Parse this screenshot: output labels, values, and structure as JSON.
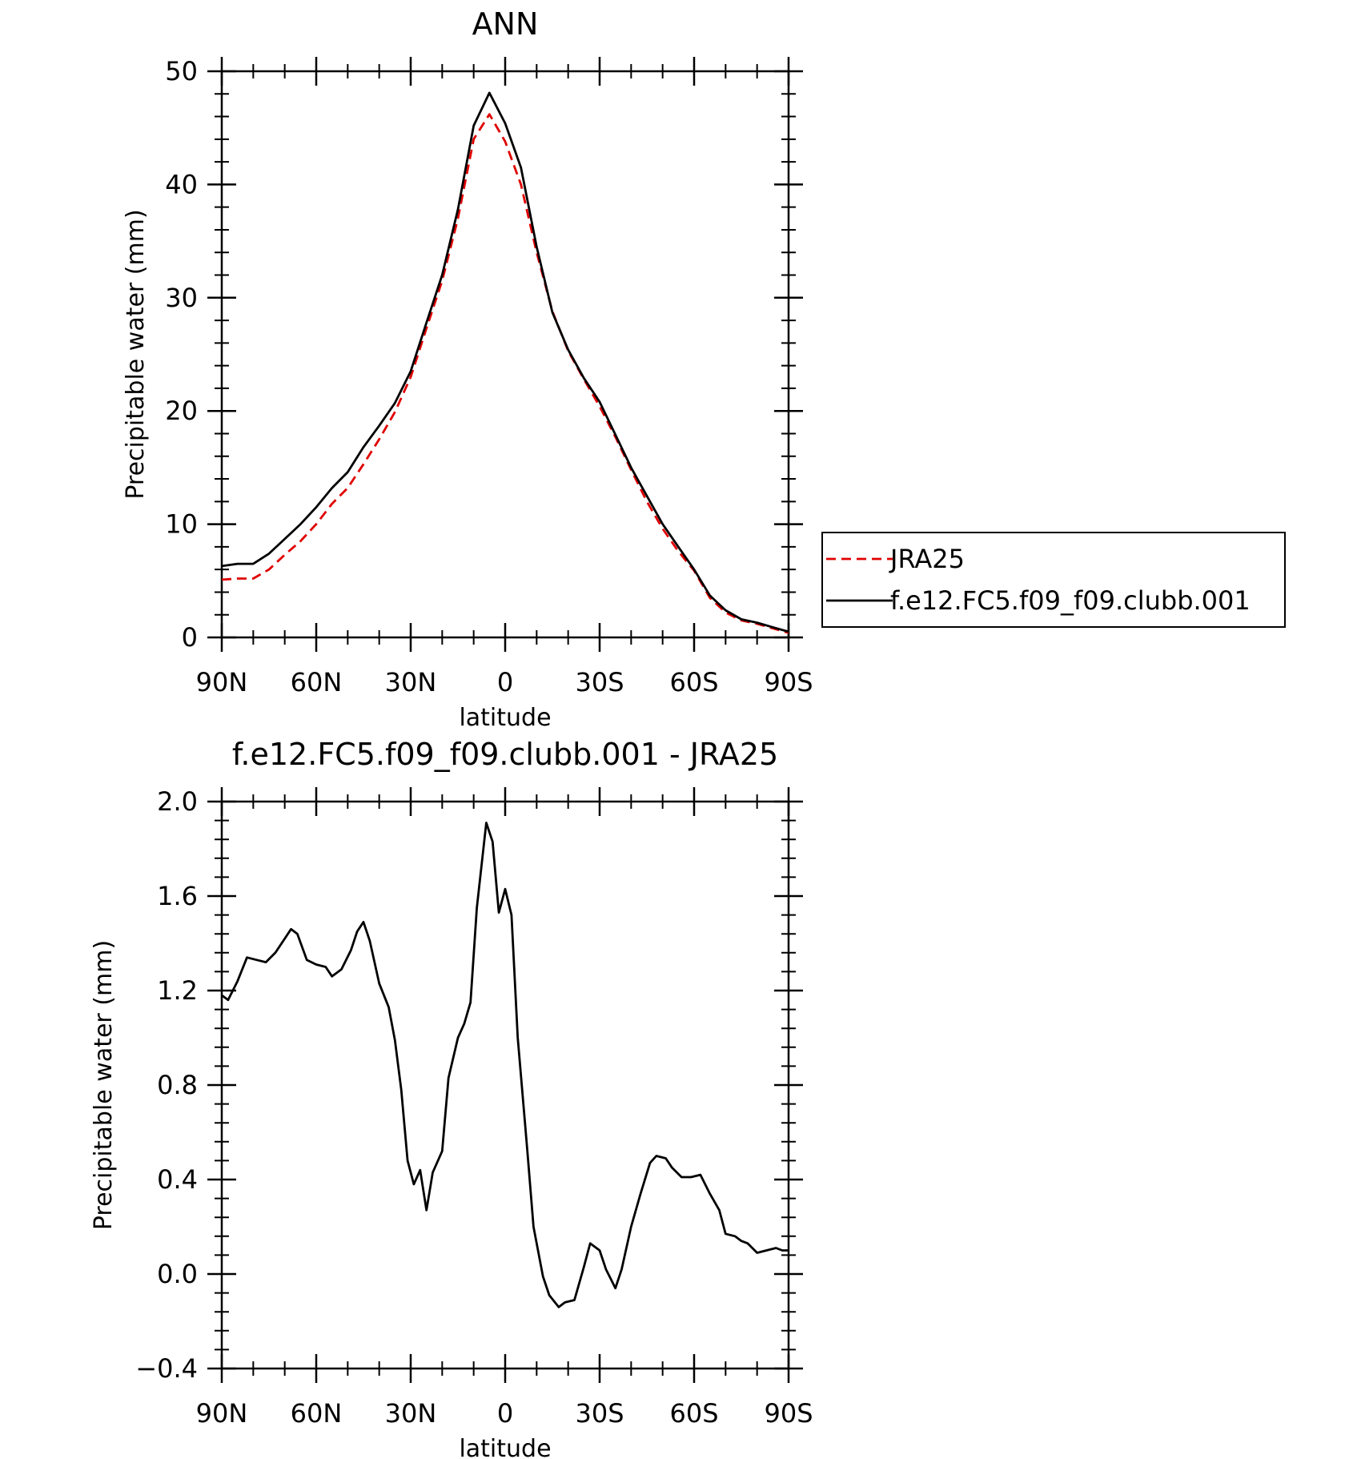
{
  "chart_data": [
    {
      "type": "line",
      "title": "ANN",
      "xlabel": "latitude",
      "ylabel": "Precipitable water (mm)",
      "xlim": [
        90,
        -90
      ],
      "ylim": [
        0,
        50
      ],
      "x_ticks": [
        90,
        60,
        30,
        0,
        -30,
        -60,
        -90
      ],
      "x_tick_labels": [
        "90N",
        "60N",
        "30N",
        "0",
        "30S",
        "60S",
        "90S"
      ],
      "y_ticks": [
        0,
        10,
        20,
        30,
        40,
        50
      ],
      "y_tick_labels": [
        "0",
        "10",
        "20",
        "30",
        "40",
        "50"
      ],
      "grid": false,
      "legend_position": "right",
      "series": [
        {
          "name": "JRA25",
          "color": "#e00000",
          "dash": "dashed",
          "x": [
            90,
            85,
            80,
            75,
            70,
            65,
            60,
            55,
            50,
            45,
            40,
            35,
            30,
            25,
            20,
            15,
            10,
            5,
            0,
            -5,
            -10,
            -15,
            -20,
            -25,
            -30,
            -35,
            -40,
            -45,
            -50,
            -55,
            -60,
            -65,
            -70,
            -75,
            -80,
            -85,
            -90
          ],
          "y": [
            5.1,
            5.2,
            5.2,
            6.0,
            7.3,
            8.5,
            10.0,
            11.8,
            13.2,
            15.3,
            17.5,
            19.9,
            23.0,
            27.3,
            31.5,
            37.0,
            44.0,
            46.2,
            43.8,
            40.0,
            34.0,
            28.8,
            25.3,
            22.8,
            20.4,
            17.7,
            14.8,
            12.0,
            9.6,
            7.6,
            5.9,
            3.5,
            2.2,
            1.5,
            1.2,
            0.8,
            0.4
          ]
        },
        {
          "name": "f.e12.FC5.f09_f09.clubb.001",
          "color": "#000000",
          "dash": "solid",
          "x": [
            90,
            85,
            80,
            75,
            70,
            65,
            60,
            55,
            50,
            45,
            40,
            35,
            30,
            25,
            20,
            15,
            10,
            5,
            0,
            -5,
            -10,
            -15,
            -20,
            -25,
            -30,
            -35,
            -40,
            -45,
            -50,
            -55,
            -60,
            -65,
            -70,
            -75,
            -80,
            -85,
            -90
          ],
          "y": [
            6.3,
            6.5,
            6.5,
            7.4,
            8.7,
            10.0,
            11.5,
            13.2,
            14.6,
            16.8,
            18.7,
            20.7,
            23.5,
            27.8,
            32.0,
            37.8,
            45.2,
            48.1,
            45.4,
            41.5,
            34.5,
            28.7,
            25.4,
            22.9,
            20.8,
            17.9,
            15.0,
            12.5,
            10.0,
            8.0,
            6.0,
            3.7,
            2.4,
            1.6,
            1.3,
            0.9,
            0.5
          ]
        }
      ]
    },
    {
      "type": "line",
      "title": "f.e12.FC5.f09_f09.clubb.001 - JRA25",
      "xlabel": "latitude",
      "ylabel": "Precipitable water (mm)",
      "xlim": [
        90,
        -90
      ],
      "ylim": [
        -0.4,
        2.0
      ],
      "x_ticks": [
        90,
        60,
        30,
        0,
        -30,
        -60,
        -90
      ],
      "x_tick_labels": [
        "90N",
        "60N",
        "30N",
        "0",
        "30S",
        "60S",
        "90S"
      ],
      "y_ticks": [
        -0.4,
        0.0,
        0.4,
        0.8,
        1.2,
        1.6,
        2.0
      ],
      "y_tick_labels": [
        "−0.4",
        "0.0",
        "0.4",
        "0.8",
        "1.2",
        "1.6",
        "2.0"
      ],
      "grid": false,
      "series": [
        {
          "color": "#000000",
          "dash": "solid",
          "x": [
            90,
            88,
            85,
            82,
            79,
            76,
            73,
            70,
            68,
            66,
            63,
            60,
            57,
            55,
            52,
            49,
            47,
            45,
            43,
            40,
            37,
            35,
            33,
            31,
            29,
            27,
            25,
            23,
            20,
            18,
            15,
            13,
            11,
            9,
            6,
            4,
            2,
            0,
            -2,
            -4,
            -7,
            -9,
            -12,
            -14,
            -17,
            -19,
            -22,
            -25,
            -27,
            -30,
            -32,
            -35,
            -37,
            -40,
            -43,
            -46,
            -48,
            -51,
            -53,
            -56,
            -59,
            -62,
            -65,
            -68,
            -70,
            -73,
            -75,
            -77,
            -80,
            -83,
            -86,
            -88,
            -90
          ],
          "y": [
            1.18,
            1.16,
            1.24,
            1.34,
            1.33,
            1.32,
            1.36,
            1.42,
            1.46,
            1.44,
            1.33,
            1.31,
            1.3,
            1.26,
            1.29,
            1.37,
            1.45,
            1.49,
            1.41,
            1.23,
            1.13,
            0.99,
            0.78,
            0.48,
            0.38,
            0.44,
            0.27,
            0.43,
            0.52,
            0.83,
            1.0,
            1.06,
            1.15,
            1.55,
            1.91,
            1.83,
            1.53,
            1.63,
            1.52,
            1.0,
            0.53,
            0.2,
            -0.01,
            -0.09,
            -0.14,
            -0.12,
            -0.11,
            0.03,
            0.13,
            0.1,
            0.02,
            -0.06,
            0.02,
            0.2,
            0.34,
            0.47,
            0.5,
            0.49,
            0.45,
            0.41,
            0.41,
            0.42,
            0.34,
            0.27,
            0.17,
            0.16,
            0.14,
            0.13,
            0.09,
            0.1,
            0.11,
            0.1,
            0.1
          ]
        }
      ]
    }
  ]
}
